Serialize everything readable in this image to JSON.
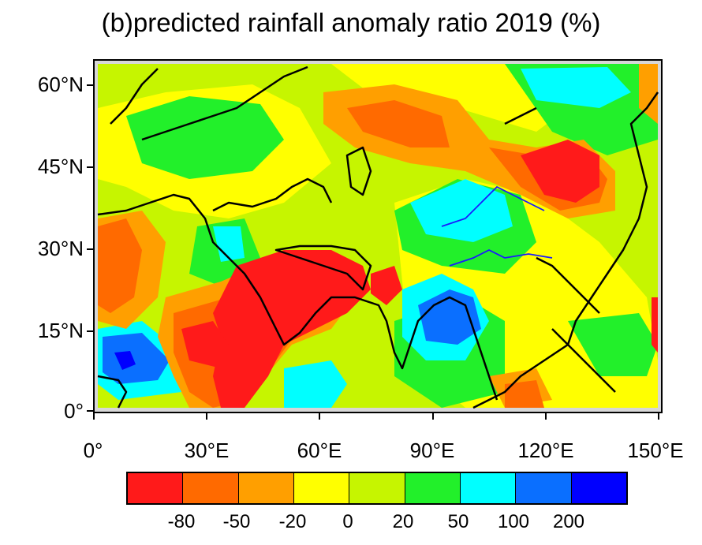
{
  "title": "(b)predicted rainfall anomaly ratio 2019 (%)",
  "axes": {
    "lat_labels": [
      "60°N",
      "45°N",
      "30°N",
      "15°N",
      "0°"
    ],
    "lon_labels": [
      "0°",
      "30°E",
      "60°E",
      "90°E",
      "120°E",
      "150°E"
    ]
  },
  "legend": {
    "colors": [
      "#ff1a1a",
      "#ff6a00",
      "#ff9f00",
      "#ffff00",
      "#c6f500",
      "#22f02a",
      "#00ffff",
      "#0a6fff",
      "#0000ff"
    ],
    "labels": [
      "-80",
      "-50",
      "-20",
      "0",
      "20",
      "50",
      "100",
      "200"
    ]
  },
  "map_colors": {
    "red": "#ff1a1a",
    "dark_orange": "#ff6a00",
    "orange": "#ff9f00",
    "yellow": "#ffff00",
    "yellow_green": "#c6f500",
    "green": "#22f02a",
    "cyan": "#00ffff",
    "blue": "#0a6fff",
    "deep_blue": "#0000ff",
    "frame_gray": "#d7d7d7",
    "river_blue": "#1a1aff"
  }
}
